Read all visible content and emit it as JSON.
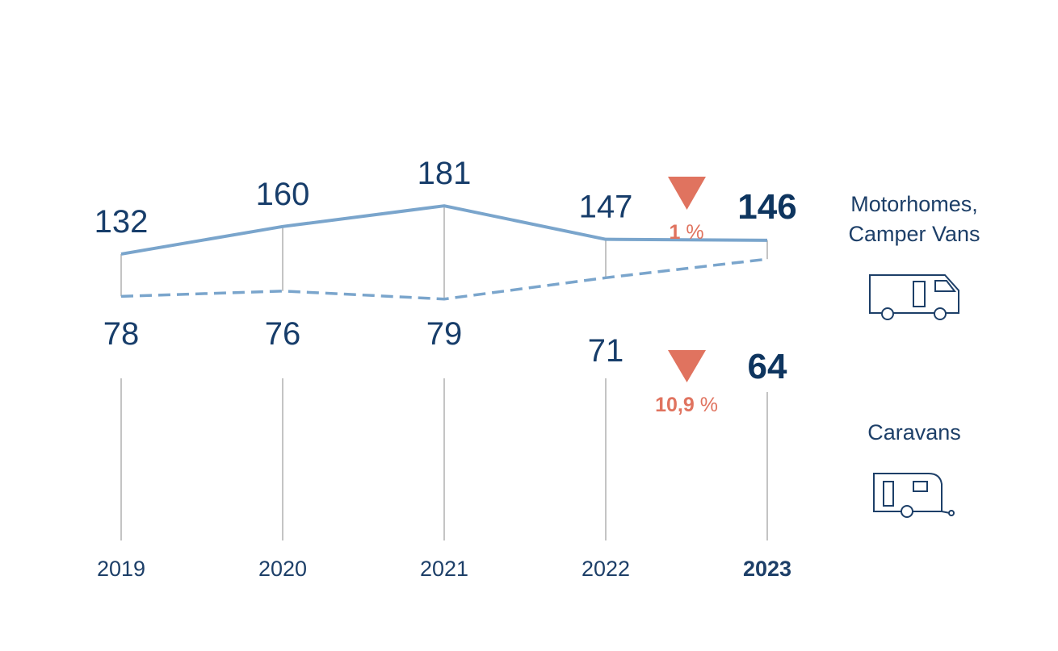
{
  "chart_data": {
    "type": "line",
    "categories": [
      "2019",
      "2020",
      "2021",
      "2022",
      "2023"
    ],
    "series": [
      {
        "name": "Motorhomes, Camper Vans",
        "values": [
          132,
          160,
          181,
          147,
          146
        ],
        "style": "solid",
        "color": "#7aa5cc",
        "change_label_num": "1",
        "change_label_unit": "%"
      },
      {
        "name": "Caravans",
        "values": [
          78,
          76,
          79,
          71,
          64
        ],
        "style": "dashed",
        "color": "#7aa5cc",
        "change_label_num": "10,9",
        "change_label_unit": "%"
      }
    ],
    "change_direction": "down",
    "change_color": "#e0735f",
    "highlight_category": "2023",
    "value_color": "#173d6a"
  },
  "legend": {
    "motorhomes_line1": "Motorhomes,",
    "motorhomes_line2": "Camper Vans",
    "motorhomes_icon": "motorhome-icon",
    "caravans": "Caravans",
    "caravans_icon": "caravan-icon"
  }
}
